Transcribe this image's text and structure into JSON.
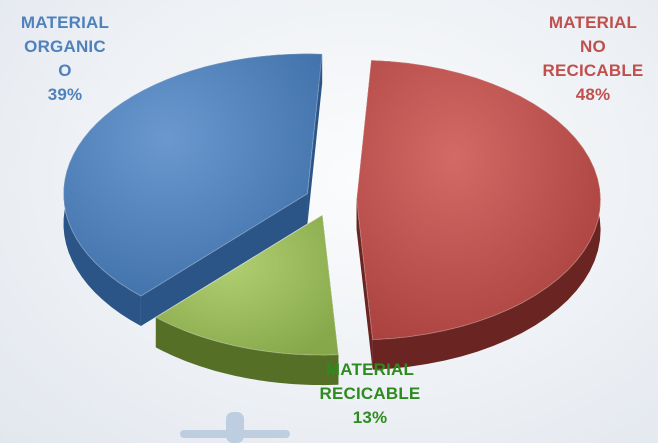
{
  "chart_data": {
    "type": "pie",
    "title": "",
    "slices": [
      {
        "label_lines": [
          "MATERIAL",
          "NO",
          "RECICABLE",
          "48%"
        ],
        "label": "MATERIAL NO RECICABLE",
        "value": 48,
        "color": "#c0504d"
      },
      {
        "label_lines": [
          "MATERIAL",
          "RECICABLE",
          "13%"
        ],
        "label": "MATERIAL RECICABLE",
        "value": 13,
        "color": "#9bbb59"
      },
      {
        "label_lines": [
          "MATERIAL",
          "ORGANIC",
          "O",
          "39%"
        ],
        "label": "MATERIAL ORGANICO",
        "value": 39,
        "color": "#4f81bd"
      }
    ],
    "label_colors": {
      "MATERIAL NO RECICABLE": "#c0504d",
      "MATERIAL RECICABLE": "#2e8b1f",
      "MATERIAL ORGANICO": "#4f81bd"
    },
    "style": "3d-exploded"
  },
  "labels": {
    "organic": "MATERIAL\nORGANIC\nO\n39%",
    "no_recicable": "MATERIAL\nNO\nRECICABLE\n48%",
    "recicable": "MATERIAL\nRECICABLE\n13%"
  }
}
